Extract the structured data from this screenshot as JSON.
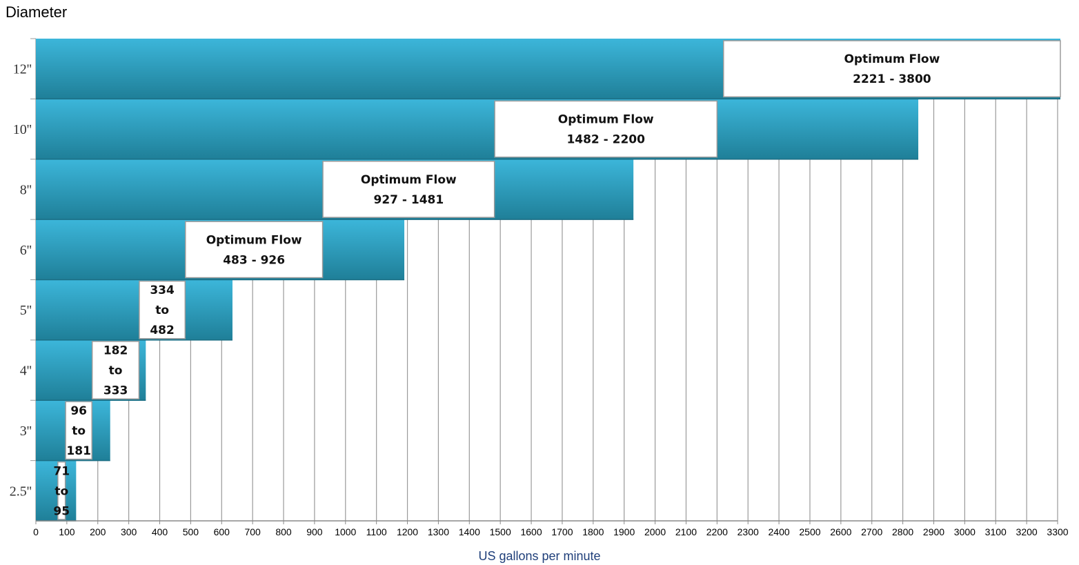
{
  "chart_data": {
    "type": "bar",
    "orientation": "horizontal",
    "title": "Diameter",
    "xlabel": "US gallons per minute",
    "xlim": [
      0,
      3300
    ],
    "xticks": [
      0,
      100,
      200,
      300,
      400,
      500,
      600,
      700,
      800,
      900,
      1000,
      1100,
      1200,
      1300,
      1400,
      1500,
      1600,
      1700,
      1800,
      1900,
      2000,
      2100,
      2200,
      2300,
      2400,
      2500,
      2600,
      2700,
      2800,
      2900,
      3000,
      3100,
      3200,
      3300
    ],
    "grid": "vertical",
    "colors": {
      "bar_top": "#3cb6da",
      "bar_bottom": "#1f7f98",
      "grid": "#999999",
      "box_fill": "#ffffff"
    },
    "rows": [
      {
        "category": "2.5''",
        "range_max": 130,
        "optimum": {
          "min": 71,
          "max": 95,
          "lines": [
            "71",
            "to",
            "95"
          ]
        }
      },
      {
        "category": "3''",
        "range_max": 240,
        "optimum": {
          "min": 96,
          "max": 181,
          "lines": [
            "96",
            "to",
            "181"
          ]
        }
      },
      {
        "category": "4''",
        "range_max": 355,
        "optimum": {
          "min": 182,
          "max": 333,
          "lines": [
            "182",
            "to",
            "333"
          ]
        }
      },
      {
        "category": "5''",
        "range_max": 635,
        "optimum": {
          "min": 334,
          "max": 482,
          "lines": [
            "334",
            "to",
            "482"
          ]
        }
      },
      {
        "category": "6''",
        "range_max": 1190,
        "optimum": {
          "min": 483,
          "max": 926,
          "lines": [
            "Optimum Flow",
            "483 - 926"
          ]
        }
      },
      {
        "category": "8''",
        "range_max": 1930,
        "optimum": {
          "min": 927,
          "max": 1481,
          "lines": [
            "Optimum Flow",
            "927 - 1481"
          ]
        }
      },
      {
        "category": "10''",
        "range_max": 2850,
        "optimum": {
          "min": 1482,
          "max": 2200,
          "lines": [
            "Optimum Flow",
            "1482 - 2200"
          ]
        }
      },
      {
        "category": "12''",
        "range_max": 3800,
        "optimum": {
          "min": 2221,
          "max": 3800,
          "lines": [
            "Optimum Flow",
            "2221 - 3800"
          ]
        }
      }
    ]
  }
}
